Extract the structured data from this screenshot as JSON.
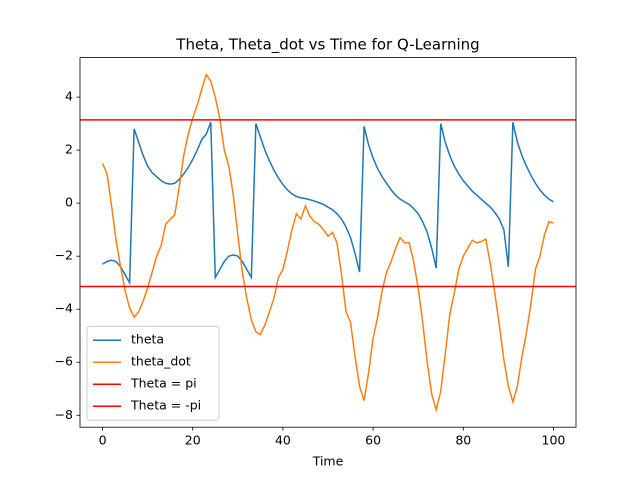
{
  "chart_data": {
    "type": "line",
    "title": "Theta, Theta_dot vs Time for Q-Learning",
    "x_label": "Time",
    "x": [
      0,
      1,
      2,
      3,
      4,
      5,
      6,
      7,
      8,
      9,
      10,
      11,
      12,
      13,
      14,
      15,
      16,
      17,
      18,
      19,
      20,
      21,
      22,
      23,
      24,
      25,
      26,
      27,
      28,
      29,
      30,
      31,
      32,
      33,
      34,
      35,
      36,
      37,
      38,
      39,
      40,
      41,
      42,
      43,
      44,
      45,
      46,
      47,
      48,
      49,
      50,
      51,
      52,
      53,
      54,
      55,
      56,
      57,
      58,
      59,
      60,
      61,
      62,
      63,
      64,
      65,
      66,
      67,
      68,
      69,
      70,
      71,
      72,
      73,
      74,
      75,
      76,
      77,
      78,
      79,
      80,
      81,
      82,
      83,
      84,
      85,
      86,
      87,
      88,
      89,
      90,
      91,
      92,
      93,
      94,
      95,
      96,
      97,
      98,
      99,
      100
    ],
    "series": [
      {
        "name": "theta",
        "color": "#1f77b4",
        "values": [
          -2.3,
          -2.2,
          -2.15,
          -2.2,
          -2.4,
          -2.7,
          -3.0,
          2.8,
          2.3,
          1.8,
          1.4,
          1.15,
          1.0,
          0.85,
          0.75,
          0.72,
          0.75,
          0.9,
          1.1,
          1.35,
          1.65,
          2.0,
          2.4,
          2.6,
          3.05,
          -2.8,
          -2.5,
          -2.2,
          -2.0,
          -1.95,
          -2.0,
          -2.2,
          -2.5,
          -2.8,
          3.0,
          2.5,
          2.0,
          1.6,
          1.25,
          0.95,
          0.7,
          0.5,
          0.35,
          0.25,
          0.2,
          0.17,
          0.13,
          0.08,
          0.02,
          -0.05,
          -0.15,
          -0.25,
          -0.4,
          -0.6,
          -0.9,
          -1.3,
          -1.9,
          -2.6,
          2.9,
          2.2,
          1.7,
          1.3,
          1.0,
          0.75,
          0.5,
          0.3,
          0.15,
          0.05,
          -0.05,
          -0.2,
          -0.4,
          -0.7,
          -1.1,
          -1.7,
          -2.45,
          3.0,
          2.3,
          1.8,
          1.4,
          1.1,
          0.85,
          0.65,
          0.45,
          0.3,
          0.15,
          0.0,
          -0.15,
          -0.35,
          -0.6,
          -1.0,
          -2.4,
          3.05,
          2.3,
          1.8,
          1.4,
          1.05,
          0.75,
          0.5,
          0.3,
          0.15,
          0.05
        ]
      },
      {
        "name": "theta_dot",
        "color": "#ff7f0e",
        "values": [
          1.5,
          1.1,
          -0.1,
          -1.4,
          -2.4,
          -3.3,
          -3.95,
          -4.3,
          -4.1,
          -3.7,
          -3.2,
          -2.6,
          -2.0,
          -1.6,
          -0.8,
          -0.6,
          -0.45,
          0.6,
          1.8,
          2.6,
          3.2,
          3.7,
          4.3,
          4.85,
          4.6,
          4.0,
          3.2,
          2.0,
          1.4,
          0.3,
          -1.2,
          -2.6,
          -3.6,
          -4.4,
          -4.85,
          -4.95,
          -4.6,
          -4.1,
          -3.6,
          -2.8,
          -2.5,
          -1.8,
          -1.0,
          -0.4,
          -0.6,
          -0.1,
          -0.5,
          -0.7,
          -0.8,
          -1.0,
          -1.25,
          -1.1,
          -1.5,
          -2.7,
          -4.1,
          -4.5,
          -5.8,
          -6.9,
          -7.45,
          -6.4,
          -5.1,
          -4.3,
          -3.3,
          -2.6,
          -2.2,
          -1.7,
          -1.3,
          -1.5,
          -1.5,
          -2.2,
          -3.2,
          -4.5,
          -6.0,
          -7.2,
          -7.8,
          -7.1,
          -5.7,
          -4.2,
          -3.4,
          -2.5,
          -2.0,
          -1.7,
          -1.4,
          -1.5,
          -1.45,
          -1.35,
          -2.3,
          -3.4,
          -4.6,
          -5.9,
          -6.9,
          -7.5,
          -6.9,
          -5.8,
          -4.9,
          -3.8,
          -2.5,
          -2.0,
          -1.2,
          -0.7,
          -0.75
        ]
      }
    ],
    "hlines": [
      {
        "name": "Theta = pi",
        "color": "#ff0000",
        "value": 3.14159
      },
      {
        "name": "Theta = -pi",
        "color": "#ff0000",
        "value": -3.14159
      }
    ],
    "xlim": [
      -5,
      105
    ],
    "ylim": [
      -8.45,
      5.49
    ],
    "xticks": [
      0,
      20,
      40,
      60,
      80,
      100
    ],
    "yticks": [
      {
        "value": -8,
        "label": "−8"
      },
      {
        "value": -6,
        "label": "−6"
      },
      {
        "value": -4,
        "label": "−4"
      },
      {
        "value": -2,
        "label": "−2"
      },
      0,
      2,
      4
    ],
    "legend": "lower left",
    "grid": false
  }
}
